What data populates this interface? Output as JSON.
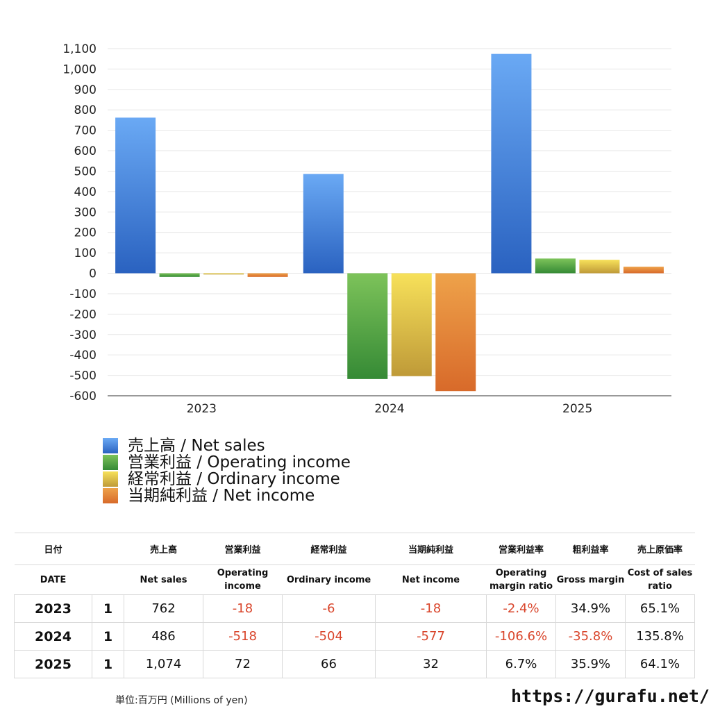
{
  "chart_data": {
    "type": "bar",
    "categories": [
      "2023",
      "2024",
      "2025"
    ],
    "ylim": [
      -600,
      1100
    ],
    "yticks": [
      1100,
      1000,
      900,
      800,
      700,
      600,
      500,
      400,
      300,
      200,
      100,
      0,
      -100,
      -200,
      -300,
      -400,
      -500,
      -600
    ],
    "ytick_labels": [
      "1,100",
      "1,000",
      "900",
      "800",
      "700",
      "600",
      "500",
      "400",
      "300",
      "200",
      "100",
      "0",
      "-100",
      "-200",
      "-300",
      "-400",
      "-500",
      "-600"
    ],
    "grid": true,
    "legend_placement": "bottom-left",
    "series": [
      {
        "name": "売上高 / Net sales",
        "values": [
          762,
          486,
          1074
        ],
        "color_top": "#6aa9f4",
        "color_bottom": "#2a62c0"
      },
      {
        "name": "営業利益 / Operating income",
        "values": [
          -18,
          -518,
          72
        ],
        "color_top": "#7dc35a",
        "color_bottom": "#358a35"
      },
      {
        "name": "経常利益 / Ordinary income",
        "values": [
          -6,
          -504,
          66
        ],
        "color_top": "#f7e15a",
        "color_bottom": "#bf9a38"
      },
      {
        "name": "当期純利益 / Net income",
        "values": [
          -18,
          -577,
          32
        ],
        "color_top": "#eea24a",
        "color_bottom": "#d86a2a"
      }
    ]
  },
  "table": {
    "header_jp": [
      "日付",
      "",
      "売上高",
      "営業利益",
      "経常利益",
      "当期純利益",
      "営業利益率",
      "粗利益率",
      "売上原価率"
    ],
    "header_en": [
      "DATE",
      "",
      "Net sales",
      "Operating income",
      "Ordinary income",
      "Net income",
      "Operating margin ratio",
      "Gross margin",
      "Cost of sales ratio"
    ],
    "rows": [
      {
        "year": "2023",
        "q": "1",
        "cells": [
          "762",
          "-18",
          "-6",
          "-18",
          "-2.4%",
          "34.9%",
          "65.1%"
        ]
      },
      {
        "year": "2024",
        "q": "1",
        "cells": [
          "486",
          "-518",
          "-504",
          "-577",
          "-106.6%",
          "-35.8%",
          "135.8%"
        ]
      },
      {
        "year": "2025",
        "q": "1",
        "cells": [
          "1,074",
          "72",
          "66",
          "32",
          "6.7%",
          "35.9%",
          "64.1%"
        ]
      }
    ]
  },
  "footer": {
    "unit": "単位:百万円 (Millions of yen)",
    "site": "https://gurafu.net/"
  },
  "colors": {
    "negative_text": "#d9452b",
    "grid": "#e6e6e6",
    "axis": "#333333"
  }
}
